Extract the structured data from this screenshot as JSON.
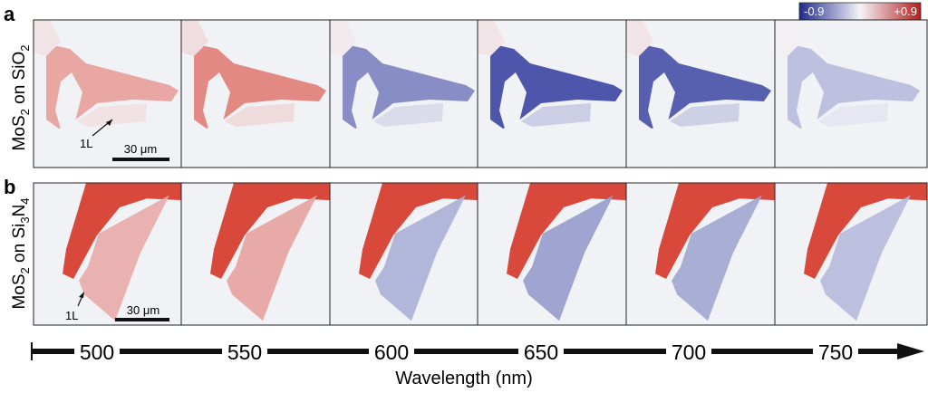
{
  "figure": {
    "panels": [
      {
        "id": "a",
        "label": "a",
        "row_label": "MoS",
        "row_label_sub": "2",
        "row_label_mid": " on SiO",
        "row_label_sub2": "2",
        "substrate": "SiO2",
        "contrast": [
          0.45,
          0.62,
          -0.55,
          -0.85,
          -0.8,
          -0.28
        ],
        "annotation_1L": "1L",
        "scale_bar": "30 μm"
      },
      {
        "id": "b",
        "label": "b",
        "row_label": "MoS",
        "row_label_sub": "2",
        "row_label_mid": " on Si",
        "row_label_sub2": "3",
        "row_label_mid2": "N",
        "row_label_sub3": "4",
        "substrate": "Si3N4",
        "contrast": [
          0.4,
          0.45,
          -0.35,
          -0.45,
          -0.4,
          -0.3
        ],
        "annotation_1L": "1L",
        "scale_bar": "30 μm"
      }
    ],
    "colorbar": {
      "min_label": "-0.9",
      "max_label": "+0.9",
      "min_color": "#1f2a8c",
      "mid_color": "#f4f4f8",
      "max_color": "#b21f1f"
    },
    "wavelength_axis": {
      "title": "Wavelength (nm)",
      "ticks": [
        "500",
        "550",
        "600",
        "650",
        "700",
        "750"
      ]
    }
  }
}
